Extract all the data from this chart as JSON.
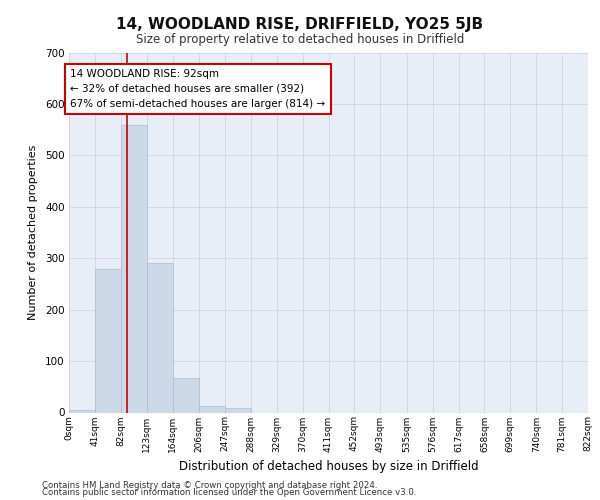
{
  "title": "14, WOODLAND RISE, DRIFFIELD, YO25 5JB",
  "subtitle": "Size of property relative to detached houses in Driffield",
  "xlabel": "Distribution of detached houses by size in Driffield",
  "ylabel": "Number of detached properties",
  "footer1": "Contains HM Land Registry data © Crown copyright and database right 2024.",
  "footer2": "Contains public sector information licensed under the Open Government Licence v3.0.",
  "bin_edges": [
    0,
    41,
    82,
    123,
    164,
    206,
    247,
    288,
    329,
    370,
    411,
    452,
    493,
    535,
    576,
    617,
    658,
    699,
    740,
    781,
    822
  ],
  "bin_labels": [
    "0sqm",
    "41sqm",
    "82sqm",
    "123sqm",
    "164sqm",
    "206sqm",
    "247sqm",
    "288sqm",
    "329sqm",
    "370sqm",
    "411sqm",
    "452sqm",
    "493sqm",
    "535sqm",
    "576sqm",
    "617sqm",
    "658sqm",
    "699sqm",
    "740sqm",
    "781sqm",
    "822sqm"
  ],
  "bar_heights": [
    5,
    280,
    560,
    290,
    68,
    13,
    8,
    0,
    0,
    0,
    0,
    0,
    0,
    0,
    0,
    0,
    0,
    0,
    0,
    0
  ],
  "bar_color": "#ccd9e8",
  "bar_edge_color": "#aabbd0",
  "grid_color": "#d0d8e8",
  "bg_color": "#e8eef8",
  "red_line_x": 92,
  "annotation_text": "14 WOODLAND RISE: 92sqm\n← 32% of detached houses are smaller (392)\n67% of semi-detached houses are larger (814) →",
  "annotation_box_color": "#ffffff",
  "annotation_box_edge": "#cc0000",
  "ylim": [
    0,
    700
  ],
  "yticks": [
    0,
    100,
    200,
    300,
    400,
    500,
    600,
    700
  ]
}
